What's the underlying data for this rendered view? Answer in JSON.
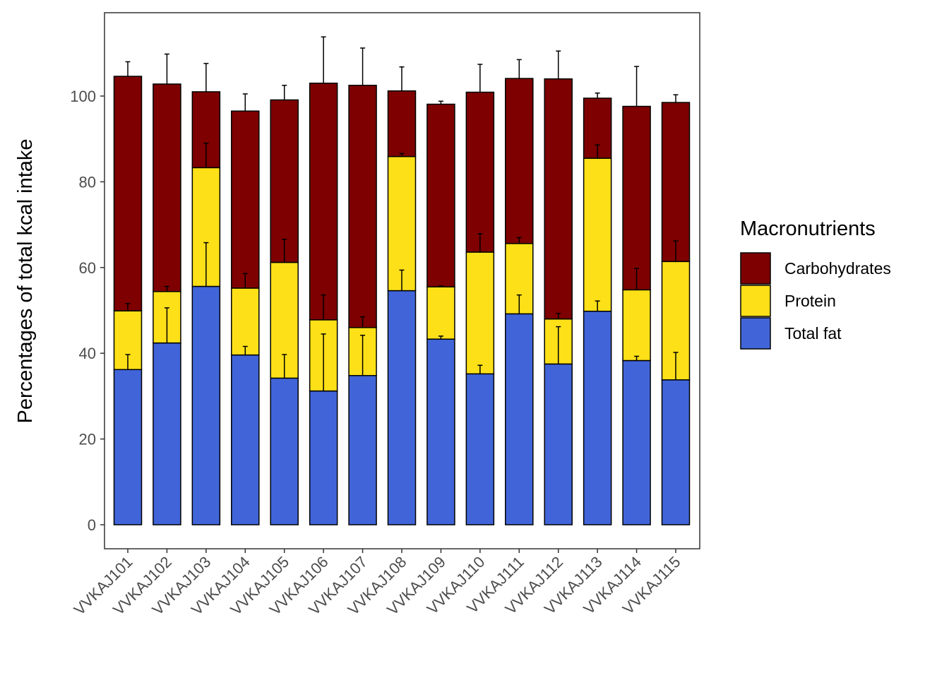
{
  "chart_data": {
    "type": "bar",
    "stacked": true,
    "error_bars": true,
    "title": "",
    "xlabel": "",
    "ylabel": "Percentages of total kcal intake",
    "ylim": [
      -5,
      118
    ],
    "yticks": [
      0,
      20,
      40,
      60,
      80,
      100
    ],
    "grid": false,
    "legend_position": "right",
    "legend_title": "Macronutrients",
    "categories": [
      "VVKAJ101",
      "VVKAJ102",
      "VVKAJ103",
      "VVKAJ104",
      "VVKAJ105",
      "VVKAJ106",
      "VVKAJ107",
      "VVKAJ108",
      "VVKAJ109",
      "VVKAJ110",
      "VVKAJ111",
      "VVKAJ112",
      "VVKAJ113",
      "VVKAJ114",
      "VVKAJ115"
    ],
    "series": [
      {
        "name": "Total fat",
        "color": "#4165D8",
        "values": [
          36.2,
          42.4,
          55.6,
          39.6,
          34.2,
          31.2,
          34.8,
          54.6,
          43.3,
          35.2,
          49.2,
          37.5,
          49.8,
          38.3,
          33.8
        ],
        "error_top": [
          39.7,
          50.6,
          65.8,
          41.6,
          39.7,
          44.5,
          44.2,
          59.4,
          44.0,
          37.2,
          53.6,
          46.2,
          52.2,
          39.3,
          40.2
        ]
      },
      {
        "name": "Protein",
        "color": "#FDE018",
        "values": [
          13.7,
          12.0,
          27.7,
          15.6,
          27.0,
          16.6,
          11.2,
          31.3,
          12.2,
          28.4,
          16.4,
          10.5,
          35.7,
          16.5,
          27.6
        ],
        "error_top": [
          51.6,
          55.6,
          89.0,
          58.6,
          66.6,
          53.6,
          48.5,
          86.6,
          55.7,
          67.9,
          67.0,
          49.3,
          88.6,
          59.8,
          66.2
        ]
      },
      {
        "name": "Carbohydrates",
        "color": "#7E0000",
        "values": [
          54.7,
          48.4,
          17.7,
          41.3,
          37.9,
          55.2,
          56.5,
          15.3,
          42.6,
          37.3,
          38.5,
          56.0,
          14.0,
          42.8,
          37.1
        ],
        "error_top": [
          108.0,
          109.8,
          107.6,
          100.5,
          102.5,
          113.8,
          111.2,
          106.8,
          98.8,
          107.4,
          108.5,
          110.5,
          100.7,
          106.9,
          100.3
        ]
      }
    ],
    "legend_order": [
      "Carbohydrates",
      "Protein",
      "Total fat"
    ]
  }
}
